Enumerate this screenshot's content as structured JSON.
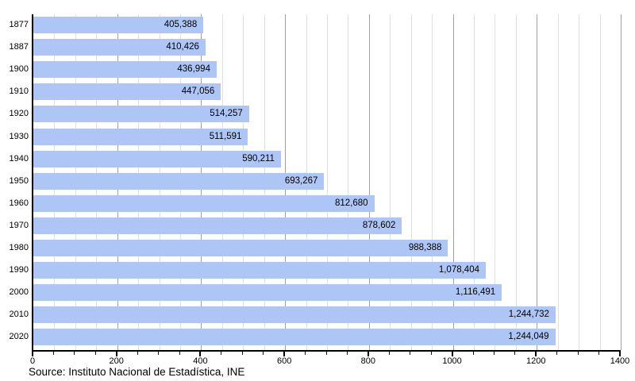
{
  "chart_data": {
    "type": "bar",
    "orientation": "horizontal",
    "title": "",
    "xlabel": "",
    "ylabel": "",
    "categories": [
      "1877",
      "1887",
      "1900",
      "1910",
      "1920",
      "1930",
      "1940",
      "1950",
      "1960",
      "1970",
      "1980",
      "1990",
      "2000",
      "2010",
      "2020"
    ],
    "values": [
      405388,
      410426,
      436994,
      447056,
      514257,
      511591,
      590211,
      693267,
      812680,
      878602,
      988388,
      1078404,
      1116491,
      1244732,
      1244049
    ],
    "value_labels": [
      "405,388",
      "410,426",
      "436,994",
      "447,056",
      "514,257",
      "511,591",
      "590,211",
      "693,267",
      "812,680",
      "878,602",
      "988,388",
      "1,078,404",
      "1,116,491",
      "1,244,732",
      "1,244,049"
    ],
    "x_axis": {
      "min": 0,
      "max": 1400,
      "unit_scale": 1000,
      "major_ticks": [
        0,
        200,
        400,
        600,
        800,
        1000,
        1200,
        1400
      ],
      "minor_tick_step": 50
    },
    "grid": true,
    "legend_position": "none"
  },
  "footer": {
    "source": "Source: Instituto Nacional de Estadística, INE"
  },
  "colors": {
    "bar_fill": "#aec6f5",
    "grid_minor": "#e0e0e0",
    "grid_major": "#a0a0a0",
    "axis": "#000000",
    "text": "#000000",
    "background": "#ffffff"
  }
}
